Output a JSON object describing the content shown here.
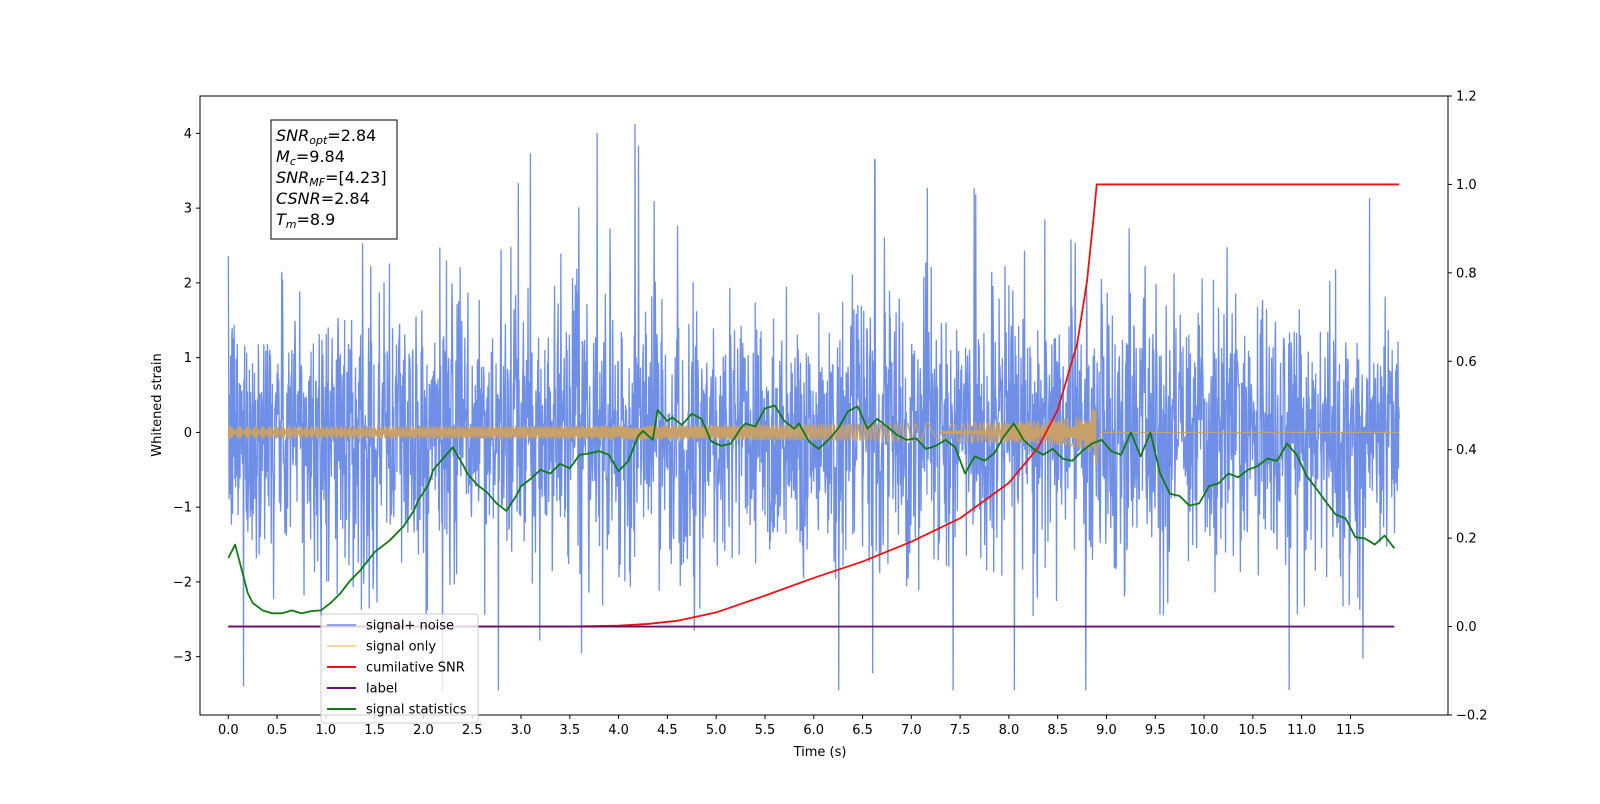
{
  "chart_data": {
    "type": "line",
    "xlabel": "Time (s)",
    "ylabel": "Whitened strain",
    "x_ticks": [
      "0.0",
      "0.5",
      "1.0",
      "1.5",
      "2.0",
      "2.5",
      "3.0",
      "3.5",
      "4.0",
      "4.5",
      "5.0",
      "5.5",
      "6.0",
      "6.5",
      "7.0",
      "7.5",
      "8.0",
      "8.5",
      "9.0",
      "9.5",
      "10.0",
      "10.5",
      "11.0",
      "11.5"
    ],
    "y_left_ticks": [
      "−3",
      "−2",
      "−1",
      "0",
      "1",
      "2",
      "3",
      "4"
    ],
    "y_right_ticks": [
      "−0.2",
      "0.0",
      "0.2",
      "0.4",
      "0.6",
      "0.8",
      "1.0",
      "1.2"
    ],
    "xlim": [
      -0.29,
      12.5
    ],
    "ylim_left": [
      -3.78,
      4.5
    ],
    "ylim_right": [
      -0.2,
      1.2
    ],
    "grid": false,
    "legend_position": "bottom-left",
    "annotation": {
      "lines": [
        {
          "base": "SNR",
          "sub": "opt",
          "value": "=2.84"
        },
        {
          "base": "M",
          "sub": "c",
          "value": "=9.84"
        },
        {
          "base": "SNR",
          "sub": "MF",
          "value": "=[4.23]"
        },
        {
          "base": "CSNR",
          "sub": "",
          "value": "=2.84"
        },
        {
          "base": "T",
          "sub": "m",
          "value": "=8.9"
        }
      ]
    },
    "series": [
      {
        "name": "signal+ noise",
        "color": "#6f8ee6",
        "axis": "left",
        "kind": "noise",
        "x_range": [
          0.0,
          12.0
        ],
        "approx_range": [
          -3.45,
          4.13
        ]
      },
      {
        "name": "signal only",
        "color": "#ffc87a",
        "axis": "left",
        "kind": "chirp",
        "x_range": [
          0.0,
          12.0
        ],
        "merger_time": 8.9,
        "peak_amplitude": 0.48
      },
      {
        "name": "cumilative SNR",
        "color": "#ee1111",
        "axis": "right",
        "x": [
          0.0,
          3.5,
          4.0,
          4.3,
          4.6,
          5.0,
          5.5,
          6.0,
          6.5,
          7.0,
          7.5,
          8.0,
          8.3,
          8.5,
          8.7,
          8.8,
          8.87,
          8.9,
          12.0
        ],
        "values": [
          0.0,
          0.0,
          0.002,
          0.006,
          0.013,
          0.032,
          0.07,
          0.11,
          0.147,
          0.192,
          0.245,
          0.325,
          0.405,
          0.49,
          0.64,
          0.78,
          0.93,
          1.0,
          1.0
        ]
      },
      {
        "name": "label",
        "color": "#6a0d6e",
        "axis": "right",
        "x": [
          0.0,
          11.95
        ],
        "values": [
          0.0,
          0.0
        ]
      },
      {
        "name": "signal statistics",
        "color": "#137a13",
        "axis": "left",
        "x": [
          0.0,
          0.07,
          0.15,
          0.2,
          0.25,
          0.35,
          0.45,
          0.55,
          0.65,
          0.75,
          0.85,
          0.95,
          1.05,
          1.15,
          1.25,
          1.35,
          1.5,
          1.65,
          1.8,
          1.9,
          1.95,
          2.05,
          2.1,
          2.2,
          2.3,
          2.4,
          2.45,
          2.55,
          2.65,
          2.75,
          2.85,
          2.95,
          3.0,
          3.1,
          3.2,
          3.3,
          3.4,
          3.5,
          3.6,
          3.7,
          3.8,
          3.9,
          4.0,
          4.1,
          4.2,
          4.25,
          4.35,
          4.4,
          4.5,
          4.55,
          4.65,
          4.75,
          4.85,
          4.95,
          5.05,
          5.15,
          5.25,
          5.3,
          5.4,
          5.5,
          5.6,
          5.7,
          5.8,
          5.85,
          5.95,
          6.05,
          6.15,
          6.25,
          6.35,
          6.45,
          6.55,
          6.65,
          6.75,
          6.85,
          6.95,
          7.05,
          7.15,
          7.25,
          7.35,
          7.45,
          7.55,
          7.65,
          7.75,
          7.85,
          7.95,
          8.05,
          8.15,
          8.25,
          8.35,
          8.45,
          8.55,
          8.65,
          8.75,
          8.85,
          8.95,
          9.05,
          9.15,
          9.25,
          9.35,
          9.45,
          9.55,
          9.65,
          9.75,
          9.85,
          9.95,
          10.05,
          10.15,
          10.25,
          10.35,
          10.45,
          10.55,
          10.65,
          10.75,
          10.85,
          10.95,
          11.05,
          11.15,
          11.25,
          11.35,
          11.45,
          11.55,
          11.65,
          11.75,
          11.85,
          11.95
        ],
        "values": [
          -1.68,
          -1.5,
          -1.9,
          -2.15,
          -2.28,
          -2.38,
          -2.42,
          -2.42,
          -2.38,
          -2.42,
          -2.39,
          -2.38,
          -2.28,
          -2.15,
          -1.98,
          -1.85,
          -1.6,
          -1.45,
          -1.25,
          -1.05,
          -0.9,
          -0.7,
          -0.5,
          -0.35,
          -0.2,
          -0.42,
          -0.55,
          -0.7,
          -0.8,
          -0.95,
          -1.05,
          -0.85,
          -0.72,
          -0.62,
          -0.5,
          -0.55,
          -0.42,
          -0.48,
          -0.3,
          -0.28,
          -0.25,
          -0.3,
          -0.52,
          -0.38,
          -0.05,
          0.02,
          -0.1,
          0.3,
          0.15,
          0.2,
          0.1,
          0.25,
          0.18,
          -0.12,
          -0.18,
          -0.15,
          0.05,
          0.12,
          0.08,
          0.32,
          0.36,
          0.15,
          0.05,
          0.12,
          -0.12,
          -0.22,
          -0.1,
          0.05,
          0.28,
          0.35,
          0.05,
          0.18,
          0.08,
          -0.03,
          -0.1,
          -0.08,
          -0.22,
          -0.18,
          -0.1,
          -0.2,
          -0.55,
          -0.32,
          -0.38,
          -0.28,
          -0.05,
          0.12,
          -0.1,
          -0.22,
          -0.3,
          -0.22,
          -0.35,
          -0.38,
          -0.25,
          -0.15,
          -0.1,
          -0.25,
          -0.3,
          0.0,
          -0.32,
          0.0,
          -0.55,
          -0.82,
          -0.85,
          -0.98,
          -0.95,
          -0.72,
          -0.68,
          -0.55,
          -0.6,
          -0.5,
          -0.45,
          -0.35,
          -0.38,
          -0.15,
          -0.3,
          -0.58,
          -0.75,
          -0.93,
          -1.1,
          -1.15,
          -1.4,
          -1.42,
          -1.5,
          -1.38,
          -1.55
        ]
      }
    ]
  }
}
